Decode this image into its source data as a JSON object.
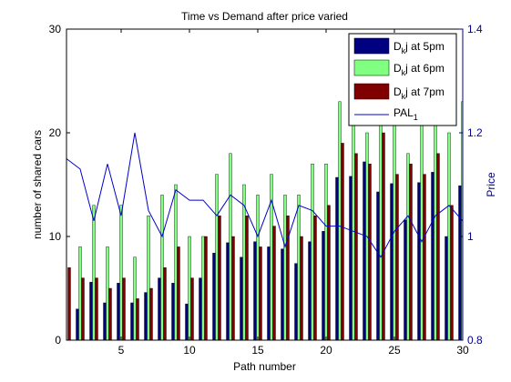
{
  "chart_data": {
    "type": "bar",
    "title": "Time vs Demand after price varied",
    "xlabel": "Path number",
    "ylabel": "number of shared cars",
    "ylabel_right": "Price",
    "xlim": [
      1,
      30
    ],
    "ylim": [
      0,
      30
    ],
    "ylim_right": [
      0.8,
      1.4
    ],
    "xticks": [
      5,
      10,
      15,
      20,
      25,
      30
    ],
    "yticks": [
      0,
      10,
      20,
      30
    ],
    "yticks_right": [
      "0.8",
      "1",
      "1.2",
      "1.4"
    ],
    "grid": false,
    "legend_position": "top-right",
    "x": [
      1,
      2,
      3,
      4,
      5,
      6,
      7,
      8,
      9,
      10,
      11,
      12,
      13,
      14,
      15,
      16,
      17,
      18,
      19,
      20,
      21,
      22,
      23,
      24,
      25,
      26,
      27,
      28,
      29,
      30
    ],
    "series": [
      {
        "name": "D_kj at 5pm",
        "color": "#000080",
        "values": [
          0,
          3,
          5.6,
          3.6,
          5.5,
          3.6,
          4.6,
          6,
          5.5,
          3.5,
          6,
          8.4,
          9.4,
          8,
          9.5,
          9,
          8.8,
          7.4,
          9.5,
          10.5,
          15.7,
          15.8,
          17.2,
          14.3,
          15.1,
          11.6,
          15.2,
          16.2,
          10,
          14.9
        ]
      },
      {
        "name": "D_kj at 6pm",
        "color": "#80ff80",
        "values": [
          0,
          9,
          13,
          9,
          13,
          8,
          12,
          14,
          15,
          10,
          10,
          16,
          18,
          15,
          14,
          16,
          14,
          14,
          17,
          17,
          23,
          22,
          20,
          22,
          21,
          18,
          21,
          22,
          20,
          23
        ]
      },
      {
        "name": "D_kj at 7pm",
        "color": "#800000",
        "values": [
          7,
          6,
          6,
          5,
          6,
          4,
          5,
          7,
          9,
          6,
          10,
          12,
          10,
          12,
          9,
          11,
          12,
          10,
          12,
          13,
          19,
          18,
          17,
          20,
          16,
          17,
          16,
          18,
          13,
          15
        ]
      },
      {
        "name": "PAL_1",
        "color": "#0000cc",
        "axis": "right",
        "type": "line",
        "values": [
          1.15,
          1.13,
          1.03,
          1.14,
          1.04,
          1.2,
          1.05,
          1.0,
          1.09,
          1.07,
          1.07,
          1.04,
          1.08,
          1.06,
          1.0,
          1.07,
          0.98,
          1.06,
          1.05,
          1.02,
          1.02,
          1.01,
          1.0,
          0.96,
          1.01,
          1.04,
          0.99,
          1.04,
          1.06,
          1.03
        ]
      }
    ]
  }
}
